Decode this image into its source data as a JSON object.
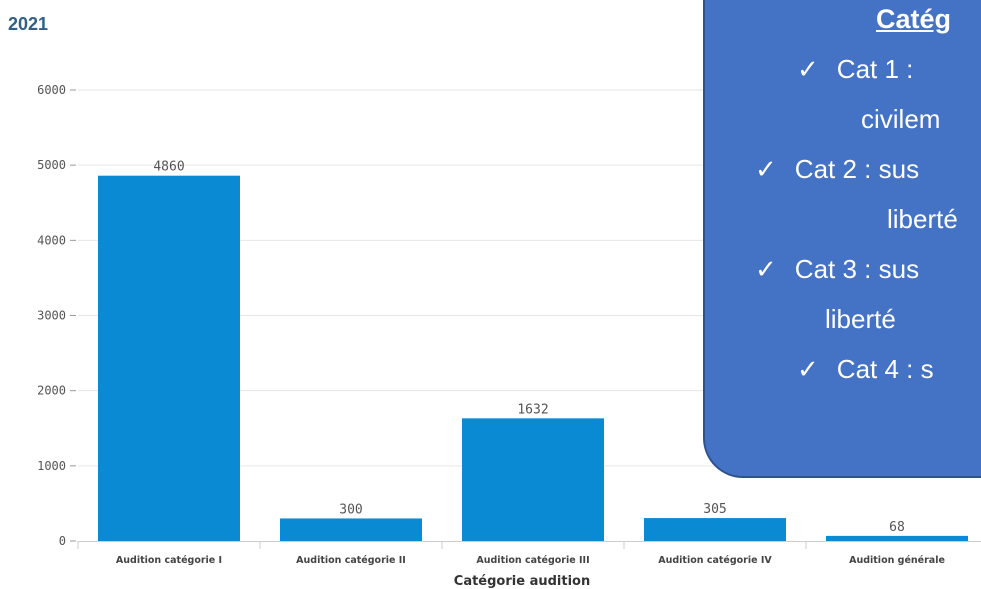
{
  "header": {
    "year": "2021"
  },
  "callout": {
    "title": "Catég",
    "items": [
      {
        "check": "✓",
        "text": "Cat 1 : "
      },
      {
        "text": "civilem"
      },
      {
        "check": "✓",
        "text": "Cat 2 : sus"
      },
      {
        "text": "liberté"
      },
      {
        "check": "✓",
        "text": "Cat 3 : sus"
      },
      {
        "text": "liberté"
      },
      {
        "check": "✓",
        "text": "Cat 4 : s"
      }
    ],
    "bg_color": "#4472c4"
  },
  "colors": {
    "bar": "#0a8ad2",
    "grid": "#e6e6e6",
    "axis": "#cccccc"
  },
  "chart_data": {
    "type": "bar",
    "title": "2021",
    "xlabel": "Catégorie audition",
    "ylabel": "",
    "categories": [
      "Audition catégorie I",
      "Audition catégorie II",
      "Audition catégorie III",
      "Audition catégorie IV",
      "Audition générale"
    ],
    "values": [
      4860,
      300,
      1632,
      305,
      68
    ],
    "data_labels": [
      "4860",
      "300",
      "1632",
      "305",
      "68"
    ],
    "yticks": [
      0,
      1000,
      2000,
      3000,
      4000,
      5000,
      6000
    ],
    "ytick_labels": [
      "0",
      "1000",
      "2000",
      "3000",
      "4000",
      "5000",
      "6000"
    ],
    "ylim": [
      0,
      6000
    ],
    "grid": true,
    "legend": "none"
  }
}
